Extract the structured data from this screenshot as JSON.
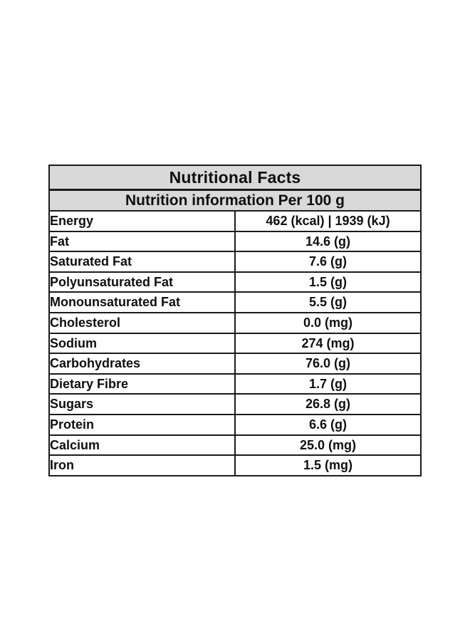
{
  "page": {
    "background_color": "#ffffff"
  },
  "colors": {
    "header_background": "#d9d9d9",
    "row_background": "#ffffff",
    "border": "#1b1b1b",
    "text": "#0f0f0f"
  },
  "table": {
    "title": "Nutritional Facts",
    "subtitle": "Nutrition information Per 100 g",
    "rows": [
      {
        "label": "Energy",
        "value": "462 (kcal) | 1939 (kJ)"
      },
      {
        "label": "Fat",
        "value": "14.6 (g)"
      },
      {
        "label": "Saturated Fat",
        "value": "7.6 (g)"
      },
      {
        "label": "Polyunsaturated Fat",
        "value": "1.5 (g)"
      },
      {
        "label": "Monounsaturated Fat",
        "value": "5.5 (g)"
      },
      {
        "label": "Cholesterol",
        "value": "0.0 (mg)"
      },
      {
        "label": "Sodium",
        "value": "274 (mg)"
      },
      {
        "label": "Carbohydrates",
        "value": "76.0 (g)"
      },
      {
        "label": "Dietary Fibre",
        "value": "1.7 (g)"
      },
      {
        "label": "Sugars",
        "value": "26.8 (g)"
      },
      {
        "label": "Protein",
        "value": "6.6 (g)"
      },
      {
        "label": "Calcium",
        "value": "25.0 (mg)"
      },
      {
        "label": "Iron",
        "value": "1.5 (mg)"
      }
    ]
  }
}
